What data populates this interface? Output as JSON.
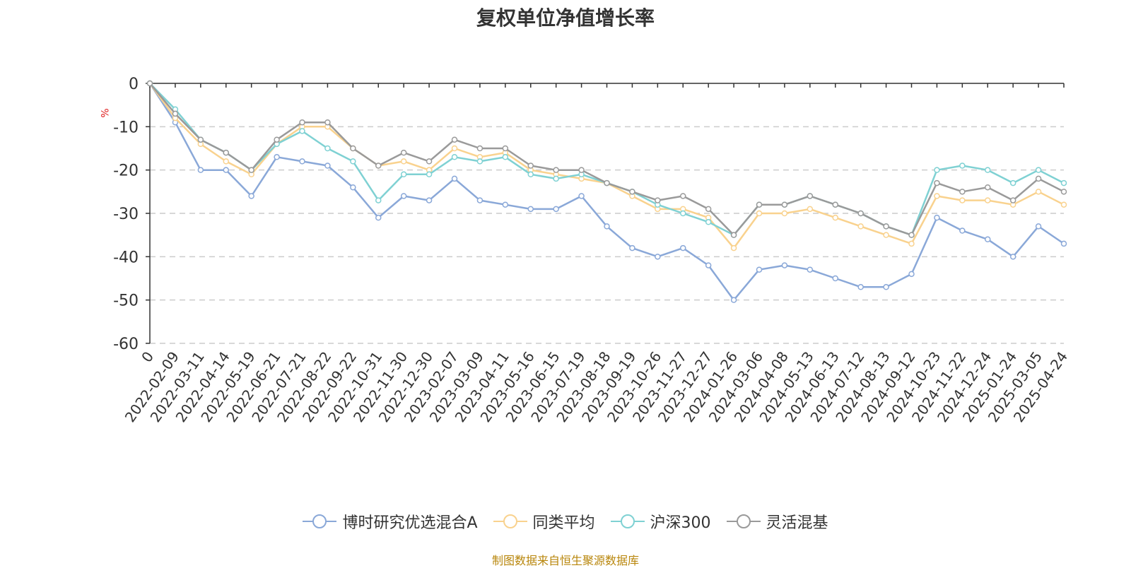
{
  "chart_data": {
    "type": "line",
    "title": "复权单位净值增长率",
    "ylabel": "%",
    "ylim": [
      -60,
      0
    ],
    "yticks": [
      0,
      -10,
      -20,
      -30,
      -40,
      -50,
      -60
    ],
    "grid": true,
    "legend_position": "bottom",
    "x": [
      "0",
      "2022-02-09",
      "2022-03-11",
      "2022-04-14",
      "2022-05-19",
      "2022-06-21",
      "2022-07-21",
      "2022-08-22",
      "2022-09-22",
      "2022-10-31",
      "2022-11-30",
      "2022-12-30",
      "2023-02-07",
      "2023-03-09",
      "2023-04-11",
      "2023-05-16",
      "2023-06-15",
      "2023-07-19",
      "2023-08-18",
      "2023-09-19",
      "2023-10-26",
      "2023-11-27",
      "2023-12-27",
      "2024-01-26",
      "2024-03-06",
      "2024-04-08",
      "2024-05-13",
      "2024-06-13",
      "2024-07-12",
      "2024-08-13",
      "2024-09-12",
      "2024-10-23",
      "2024-11-22",
      "2024-12-24",
      "2025-01-24",
      "2025-03-05",
      "2025-04-24"
    ],
    "series": [
      {
        "name": "博时研究优选混合A",
        "color": "#8aa8d8",
        "values": [
          0,
          -9,
          -20,
          -20,
          -26,
          -17,
          -18,
          -19,
          -24,
          -31,
          -26,
          -27,
          -22,
          -27,
          -28,
          -29,
          -29,
          -26,
          -33,
          -38,
          -40,
          -38,
          -42,
          -50,
          -43,
          -42,
          -43,
          -45,
          -47,
          -47,
          -44,
          -31,
          -34,
          -36,
          -40,
          -33,
          -37
        ]
      },
      {
        "name": "同类平均",
        "color": "#f9d28e",
        "values": [
          0,
          -8,
          -14,
          -18,
          -21,
          -14,
          -10,
          -10,
          -15,
          -19,
          -18,
          -20,
          -15,
          -17,
          -16,
          -20,
          -21,
          -22,
          -23,
          -26,
          -29,
          -29,
          -31,
          -38,
          -30,
          -30,
          -29,
          -31,
          -33,
          -35,
          -37,
          -26,
          -27,
          -27,
          -28,
          -25,
          -28
        ]
      },
      {
        "name": "沪深300",
        "color": "#7fd1d3",
        "values": [
          0,
          -6,
          -13,
          -16,
          -20,
          -14,
          -11,
          -15,
          -18,
          -27,
          -21,
          -21,
          -17,
          -18,
          -17,
          -21,
          -22,
          -21,
          -23,
          -25,
          -28,
          -30,
          -32,
          -35,
          -28,
          -28,
          -26,
          -28,
          -30,
          -33,
          -35,
          -20,
          -19,
          -20,
          -23,
          -20,
          -23
        ]
      },
      {
        "name": "灵活混基",
        "color": "#9a9a9a",
        "values": [
          0,
          -7,
          -13,
          -16,
          -20,
          -13,
          -9,
          -9,
          -15,
          -19,
          -16,
          -18,
          -13,
          -15,
          -15,
          -19,
          -20,
          -20,
          -23,
          -25,
          -27,
          -26,
          -29,
          -35,
          -28,
          -28,
          -26,
          -28,
          -30,
          -33,
          -35,
          -23,
          -25,
          -24,
          -27,
          -22,
          -25
        ]
      }
    ]
  },
  "source_note": "制图数据来自恒生聚源数据库"
}
